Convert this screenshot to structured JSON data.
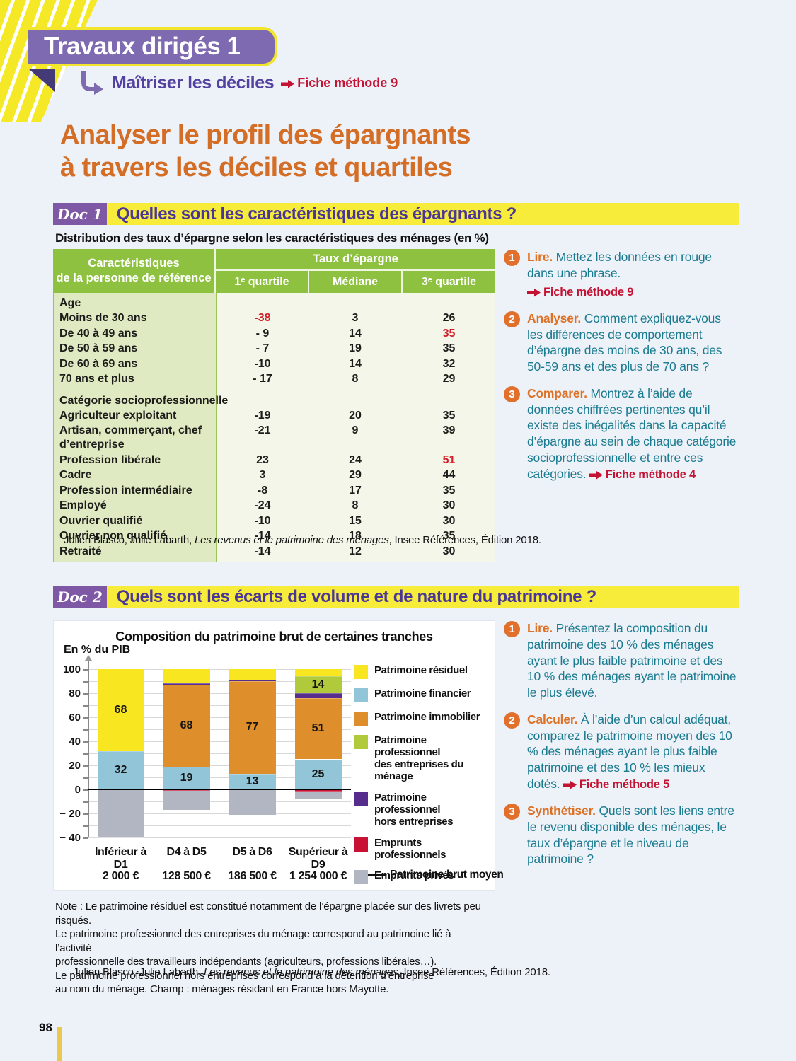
{
  "palette": {
    "page_bg": "#edf1f8",
    "banner_purple": "#7d6ab0",
    "yellow": "#f7ec3a",
    "heading_purple": "#4a3697",
    "title_orange": "#d46e27",
    "teal_text": "#1a7b90",
    "verb_orange": "#dd7226",
    "fiche_red": "#c41233",
    "table_header_green": "#8dc13f",
    "table_left_green": "#dfe9c2",
    "table_value_bg": "#f3f6e9",
    "red_value": "#d0202c"
  },
  "page": {
    "number": "98"
  },
  "banner": {
    "title": "Travaux dirigés 1",
    "subtitle": "Maîtriser les déciles",
    "fiche": "Fiche méthode 9"
  },
  "main_title": {
    "line1": "Analyser le profil des épargnants",
    "line2": "à travers les déciles et quartiles"
  },
  "doc1": {
    "badge": "Doc 1",
    "heading": "Quelles sont les caractéristiques des épargnants ?",
    "table_title": "Distribution des taux d’épargne selon les caractéristiques des ménages (en %)",
    "table": {
      "col1_header": "Caractéristiques\nde la personne de référence",
      "group_header": "Taux d’épargne",
      "subheaders": [
        "1ᵉ quartile",
        "Médiane",
        "3ᵉ quartile"
      ],
      "sections": [
        {
          "title": "Age",
          "rows": [
            {
              "label": "Moins de 30 ans",
              "values": [
                "-38",
                "3",
                "26"
              ],
              "red_cols": [
                0
              ]
            },
            {
              "label": "De 40 à 49 ans",
              "values": [
                "- 9",
                "14",
                "35"
              ],
              "red_cols": [
                2
              ]
            },
            {
              "label": "De 50 à 59 ans",
              "values": [
                "- 7",
                "19",
                "35"
              ],
              "red_cols": []
            },
            {
              "label": "De 60 à 69 ans",
              "values": [
                "-10",
                "14",
                "32"
              ],
              "red_cols": []
            },
            {
              "label": "70 ans et plus",
              "values": [
                "- 17",
                "8",
                "29"
              ],
              "red_cols": []
            }
          ]
        },
        {
          "title": "Catégorie socioprofessionnelle",
          "rows": [
            {
              "label": "Agriculteur exploitant",
              "values": [
                "-19",
                "20",
                "35"
              ],
              "red_cols": []
            },
            {
              "label": "Artisan, commerçant, chef d’entreprise",
              "values": [
                "-21",
                "9",
                "39"
              ],
              "red_cols": []
            },
            {
              "label": "Profession libérale",
              "values": [
                "23",
                "24",
                "51"
              ],
              "red_cols": [
                2
              ]
            },
            {
              "label": "Cadre",
              "values": [
                "3",
                "29",
                "44"
              ],
              "red_cols": []
            },
            {
              "label": "Profession intermédiaire",
              "values": [
                "-8",
                "17",
                "35"
              ],
              "red_cols": []
            },
            {
              "label": "Employé",
              "values": [
                "-24",
                "8",
                "30"
              ],
              "red_cols": []
            },
            {
              "label": "Ouvrier qualifié",
              "values": [
                "-10",
                "15",
                "30"
              ],
              "red_cols": []
            },
            {
              "label": "Ouvrier non qualifié",
              "values": [
                "-14",
                "18",
                "35"
              ],
              "red_cols": []
            },
            {
              "label": "Retraité",
              "values": [
                "-14",
                "12",
                "30"
              ],
              "red_cols": []
            }
          ]
        }
      ]
    },
    "source": {
      "pre": "Julien Blasco, Julie Labarth, ",
      "italic": "Les revenus et le patrimoine des ménages",
      "post": ", Insee Références, Édition 2018."
    },
    "questions": [
      {
        "num": "1",
        "verb": "Lire.",
        "text": "Mettez les données en rouge dans une phrase.",
        "fiche": "Fiche méthode 9",
        "fiche_own_line": true
      },
      {
        "num": "2",
        "verb": "Analyser.",
        "text": "Comment expliquez-vous les différences de comportement d’épargne des moins de 30 ans, des 50-59 ans et des plus de 70 ans ?"
      },
      {
        "num": "3",
        "verb": "Comparer.",
        "text": "Montrez à l’aide de données chiffrées pertinentes qu’il existe des inégalités dans la capacité d’épargne au sein de chaque catégorie socioprofessionnelle et entre ces catégories.",
        "fiche": "Fiche méthode 4",
        "fiche_own_line": false
      }
    ]
  },
  "doc2": {
    "badge": "Doc 2",
    "heading": "Quels sont les écarts de volume et de nature du patrimoine ?",
    "questions": [
      {
        "num": "1",
        "verb": "Lire.",
        "text": "Présentez la composition du patrimoine des 10 % des ménages ayant le plus faible patrimoine et des 10 % des ménages ayant le patrimoine le plus élevé."
      },
      {
        "num": "2",
        "verb": "Calculer.",
        "text": "À l’aide d’un calcul adéquat, comparez le patrimoine moyen des 10 % des ménages ayant le plus faible patrimoine et des 10 % les mieux dotés.",
        "fiche": "Fiche méthode 5",
        "fiche_own_line": false
      },
      {
        "num": "3",
        "verb": "Synthétiser.",
        "text": "Quels sont les liens entre le revenu disponible des ménages, le taux d’épargne et le niveau de patrimoine ?"
      }
    ],
    "note": "Note : Le patrimoine résiduel est constitué notamment de l’épargne placée sur des livrets peu risqués.\nLe patrimoine professionnel des entreprises du ménage correspond au patrimoine lié à l’activité\nprofessionnelle des travailleurs indépendants (agriculteurs, professions libérales…).\nLe patrimoine professionnel hors entreprises correspond à la détention d’entreprise\nau nom du ménage. Champ : ménages résidant en France hors Mayotte.",
    "source": {
      "pre": "Julien Blasco, Julie Labarth, ",
      "italic": "Les revenus et le patrimoine des ménages",
      "post": ", Insee Références, Édition 2018."
    }
  },
  "chart_data": {
    "type": "bar",
    "stacked": true,
    "title": "Composition du patrimoine brut de certaines tranches",
    "ylabel": "En % du PIB",
    "ylim": [
      -40,
      100
    ],
    "grid_step": 10,
    "grid": true,
    "legend_position": "right",
    "yticks": [
      {
        "v": 100,
        "label": "100"
      },
      {
        "v": 80,
        "label": "80"
      },
      {
        "v": 60,
        "label": "60"
      },
      {
        "v": 40,
        "label": "40"
      },
      {
        "v": 20,
        "label": "20"
      },
      {
        "v": 0,
        "label": "0"
      },
      {
        "v": -20,
        "label": "− 20"
      },
      {
        "v": -40,
        "label": "− 40"
      }
    ],
    "categories": [
      "Inférieur à D1",
      "D4 à D5",
      "D5 à D6",
      "Supérieur à D9"
    ],
    "mean_wealth": [
      "2 000 €",
      "128 500 €",
      "186 500 €",
      "1 254 000 €"
    ],
    "mean_wealth_label": "Patrimoine brut moyen",
    "series": [
      {
        "name": "Patrimoine financier",
        "color": "#92c5d8",
        "values": [
          32,
          19,
          13,
          25
        ],
        "labels": [
          "32",
          "19",
          "13",
          "25"
        ]
      },
      {
        "name": "Patrimoine immobilier",
        "color": "#de8e2b",
        "values": [
          0,
          68,
          77,
          51
        ],
        "labels": [
          null,
          "68",
          "77",
          "51"
        ]
      },
      {
        "name": "Patrimoine professionnel hors entreprises",
        "color": "#562d8d",
        "values": [
          0,
          1,
          1,
          4
        ],
        "labels": [
          null,
          null,
          null,
          null
        ]
      },
      {
        "name": "Patrimoine professionnel des entreprises du ménage",
        "color": "#b0ca3c",
        "values": [
          0,
          1,
          0,
          14
        ],
        "labels": [
          null,
          null,
          null,
          "14"
        ]
      },
      {
        "name": "Patrimoine résiduel",
        "color": "#f8e621",
        "values": [
          68,
          11,
          9,
          6
        ],
        "labels": [
          "68",
          null,
          null,
          null
        ]
      },
      {
        "name": "Emprunts professionnels",
        "color": "#c81135",
        "values": [
          0,
          -1,
          0,
          -2
        ],
        "labels": [
          null,
          null,
          null,
          null
        ]
      },
      {
        "name": "Emprunts privés",
        "color": "#b2b6c2",
        "values": [
          -40,
          -16,
          -21,
          -6
        ],
        "labels": [
          null,
          null,
          null,
          null
        ]
      }
    ],
    "legend": [
      {
        "label": "Patrimoine résiduel",
        "color": "#f8e621"
      },
      {
        "label": "Patrimoine financier",
        "color": "#92c5d8"
      },
      {
        "label": "Patrimoine immobilier",
        "color": "#de8e2b"
      },
      {
        "label": "Patrimoine professionnel\ndes entreprises du ménage",
        "color": "#b0ca3c"
      },
      {
        "label": "Patrimoine professionnel\nhors entreprises",
        "color": "#562d8d"
      },
      {
        "label": "Emprunts\nprofessionnels",
        "color": "#c81135"
      },
      {
        "label": "Emprunts privés",
        "color": "#b2b6c2"
      }
    ]
  }
}
